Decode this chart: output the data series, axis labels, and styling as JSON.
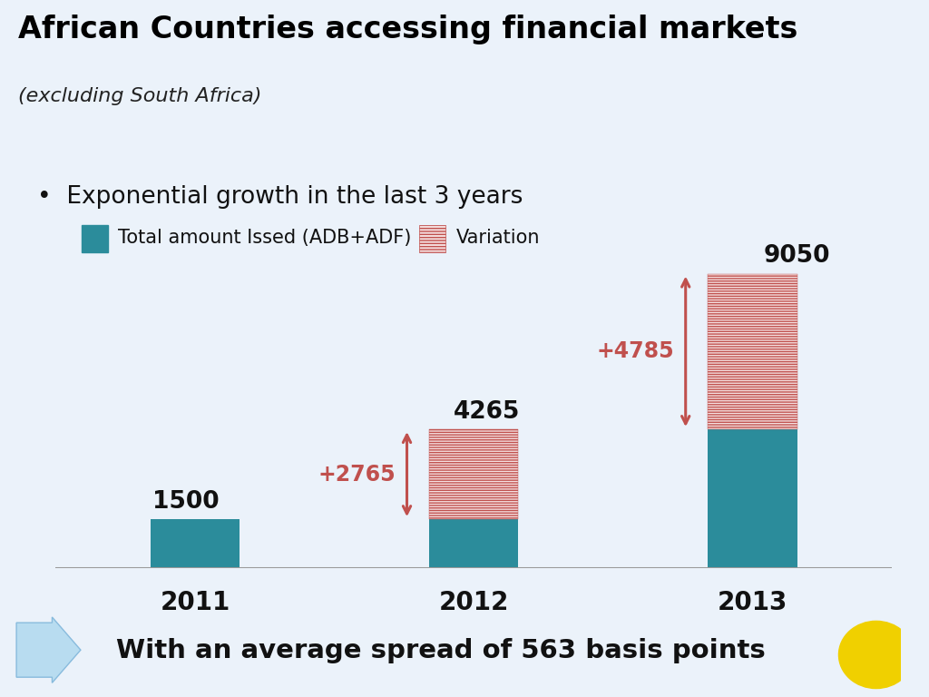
{
  "title": "African Countries accessing financial markets",
  "subtitle": "(excluding South Africa)",
  "bullet": "•  Exponential growth in the last 3 years",
  "legend_solid": "Total amount Issed (ADB+ADF)",
  "legend_hatched": "Variation",
  "years": [
    "2011",
    "2012",
    "2013"
  ],
  "base_values": [
    1500,
    1500,
    4265
  ],
  "variation_values": [
    0,
    2765,
    4785
  ],
  "total_labels": [
    "1500",
    "4265",
    "9050"
  ],
  "totals": [
    1500,
    4265,
    9050
  ],
  "footer_text": "With an average spread of 563 basis points",
  "bar_color": "#2B8C9B",
  "hatch_facecolor": "#F5E0E0",
  "hatch_edgecolor": "#C0504D",
  "variation_color": "#C0504D",
  "label_color": "#111111",
  "background_color": "#EBF2FA",
  "header_color": "#DCE9F5",
  "arrow_color": "#C0504D",
  "footer_arrow_color": "#B8DCF0",
  "footer_arrow_edge": "#88BBDD",
  "yellow_color": "#F0D000",
  "axis_color": "#999999",
  "ylim": [
    0,
    10500
  ],
  "bar_width": 0.32,
  "x_positions": [
    0,
    1,
    2
  ]
}
